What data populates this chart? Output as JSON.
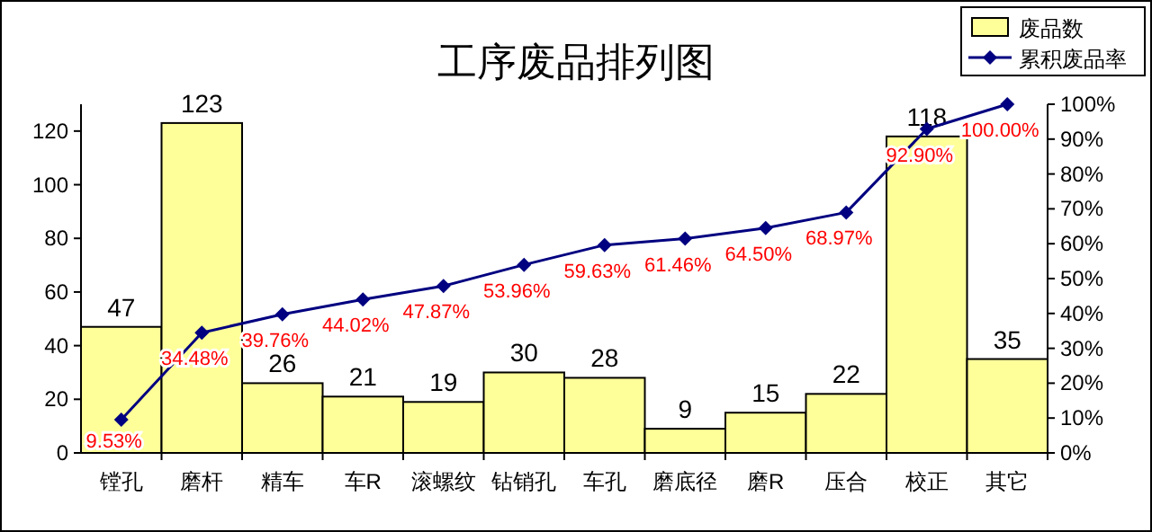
{
  "chart_data": {
    "type": "bar",
    "title": "工序废品排列图",
    "categories": [
      "镗孔",
      "磨杆",
      "精车",
      "车R",
      "滚螺纹",
      "钻销孔",
      "车孔",
      "磨底径",
      "磨R",
      "压合",
      "校正",
      "其它"
    ],
    "series": [
      {
        "name": "废品数",
        "color": "#ffff99",
        "data_labels": true,
        "values": [
          47,
          123,
          26,
          21,
          19,
          30,
          28,
          9,
          15,
          22,
          118,
          35
        ]
      },
      {
        "name": "累积废品率",
        "type": "line",
        "axis": "y2",
        "color": "#000080",
        "marker": "diamond",
        "values": [
          9.53,
          34.48,
          39.76,
          44.02,
          47.87,
          53.96,
          59.63,
          61.46,
          64.5,
          68.97,
          92.9,
          100.0
        ],
        "value_labels": [
          "9.53%",
          "34.48%",
          "39.76%",
          "44.02%",
          "47.87%",
          "53.96%",
          "59.63%",
          "61.46%",
          "64.50%",
          "68.97%",
          "92.90%",
          "100.00%"
        ]
      }
    ],
    "ylim": [
      0,
      130
    ],
    "yticks": [
      0,
      20,
      40,
      60,
      80,
      100,
      120
    ],
    "y2lim": [
      0,
      100
    ],
    "y2ticks": [
      {
        "value": 0,
        "label": "0%"
      },
      {
        "value": 10,
        "label": "10%"
      },
      {
        "value": 20,
        "label": "20%"
      },
      {
        "value": 30,
        "label": "30%"
      },
      {
        "value": 40,
        "label": "40%"
      },
      {
        "value": 50,
        "label": "50%"
      },
      {
        "value": 60,
        "label": "60%"
      },
      {
        "value": 70,
        "label": "70%"
      },
      {
        "value": 80,
        "label": "80%"
      },
      {
        "value": 90,
        "label": "90%"
      },
      {
        "value": 100,
        "label": "100%"
      }
    ],
    "legend": "top right"
  }
}
